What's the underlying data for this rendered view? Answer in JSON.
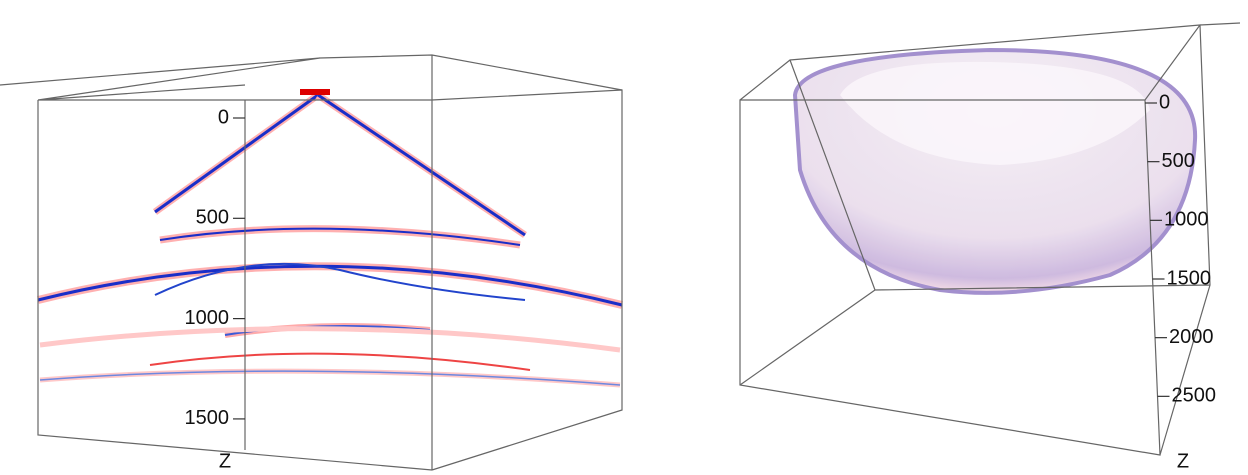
{
  "chart_data": [
    {
      "type": "volume3d",
      "zlabel": "Z",
      "zlim": [
        0,
        1630
      ],
      "zticks": [
        0,
        500,
        1000,
        1500
      ]
    },
    {
      "type": "volume3d",
      "zlabel": "Z",
      "zlim": [
        0,
        3000
      ],
      "zticks": [
        0,
        500,
        1000,
        1500,
        2000,
        2500
      ]
    }
  ]
}
